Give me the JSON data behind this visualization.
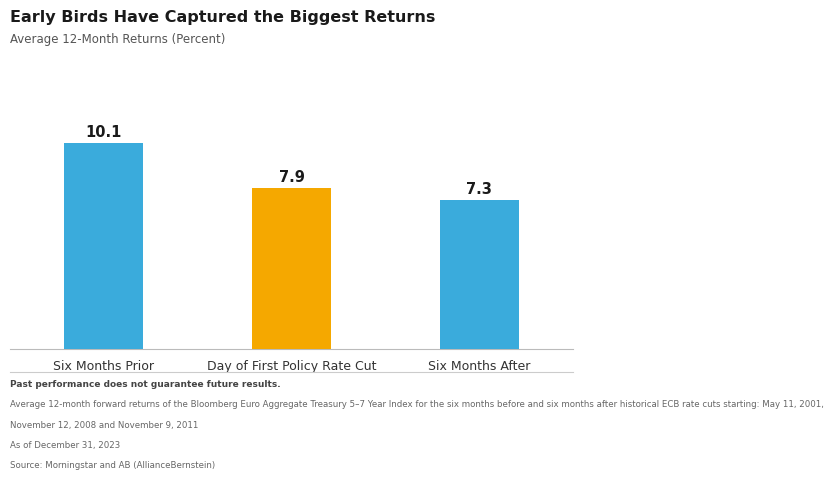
{
  "title": "Early Birds Have Captured the Biggest Returns",
  "subtitle": "Average 12-Month Returns (Percent)",
  "categories": [
    "Six Months Prior",
    "Day of First Policy Rate Cut",
    "Six Months After"
  ],
  "values": [
    10.1,
    7.9,
    7.3
  ],
  "bar_colors": [
    "#3AABDC",
    "#F5A800",
    "#3AABDC"
  ],
  "value_labels": [
    "10.1",
    "7.9",
    "7.3"
  ],
  "ylim": [
    0,
    12.5
  ],
  "background_color": "#FFFFFF",
  "footnote_bold": "Past performance does not guarantee future results.",
  "footnote_line1": "Average 12-month forward returns of the Bloomberg Euro Aggregate Treasury 5–7 Year Index for the six months before and six months after historical ECB rate cuts starting: May 11, 2001,",
  "footnote_line2": "November 12, 2008 and November 9, 2011",
  "footnote_line3": "As of December 31, 2023",
  "footnote_line4": "Source: Morningstar and AB (AllianceBernstein)"
}
